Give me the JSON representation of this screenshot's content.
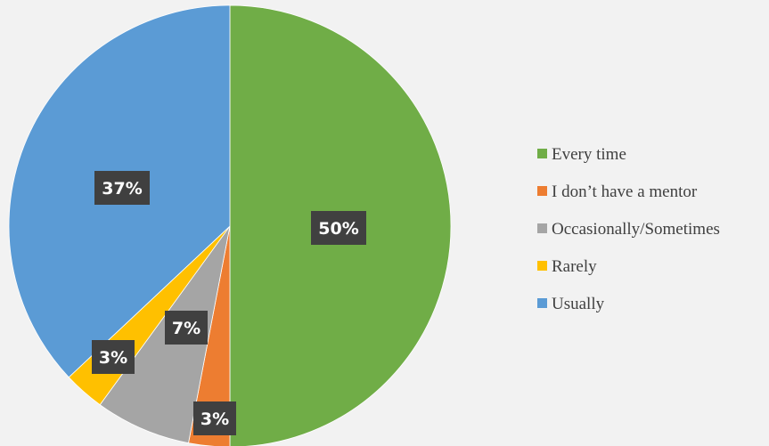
{
  "chart_data": {
    "type": "pie",
    "title": "",
    "categories": [
      "Every time",
      "I don’t have a mentor",
      "Occasionally/Sometimes",
      "Rarely",
      "Usually"
    ],
    "values": [
      50,
      3,
      7,
      3,
      37
    ],
    "labels": [
      "50%",
      "3%",
      "7%",
      "3%",
      "37%"
    ],
    "colors": [
      "#70ad47",
      "#ed7d31",
      "#a5a5a5",
      "#ffc000",
      "#5b9bd5"
    ],
    "start_angle_deg": 0,
    "direction": "clockwise",
    "legend_position": "right",
    "data_label_style": "dark box with white bold text"
  }
}
